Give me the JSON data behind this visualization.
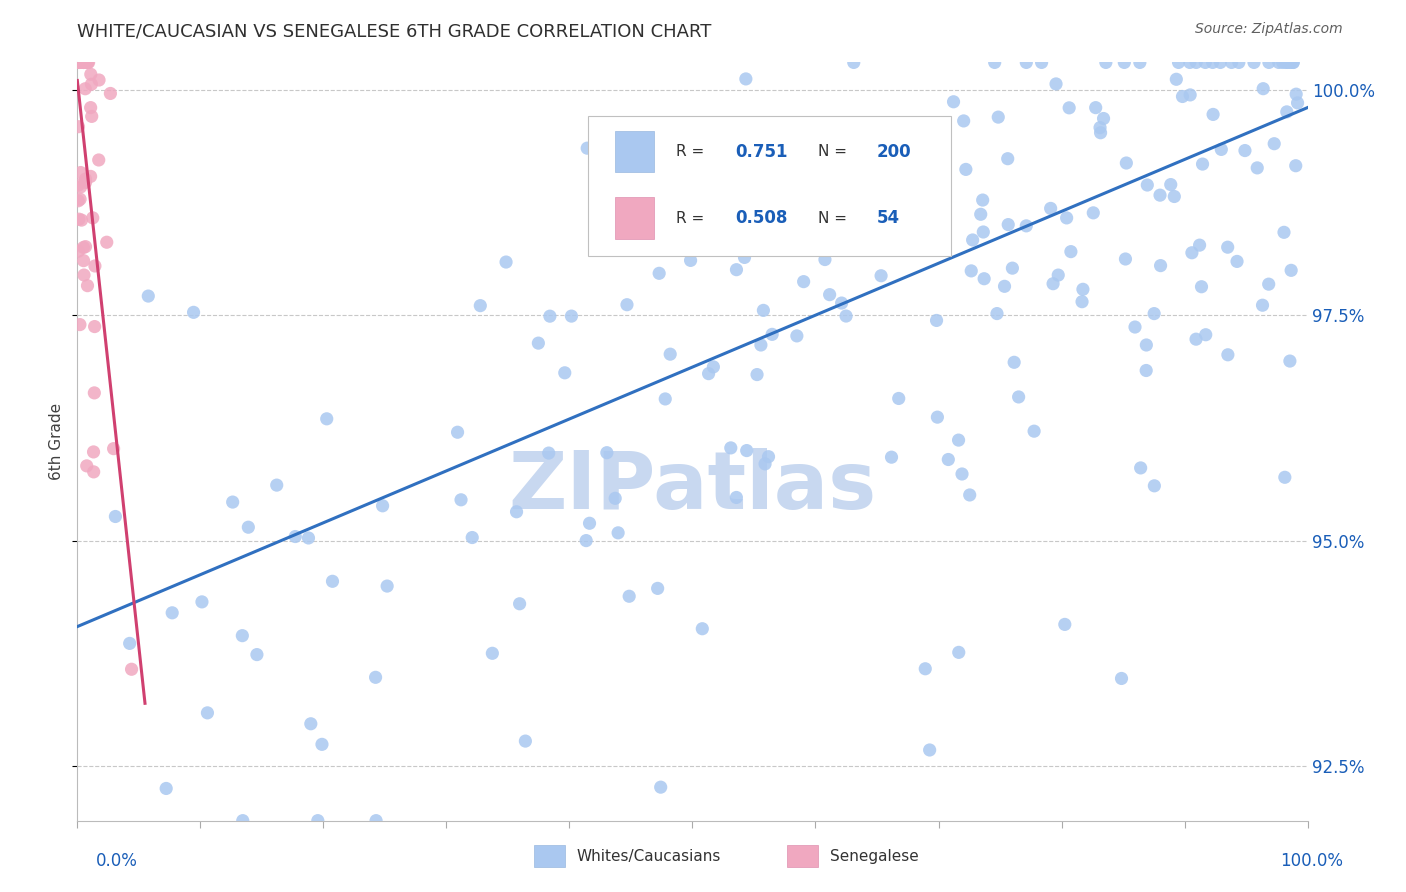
{
  "title": "WHITE/CAUCASIAN VS SENEGALESE 6TH GRADE CORRELATION CHART",
  "source": "Source: ZipAtlas.com",
  "legend_label1": "Whites/Caucasians",
  "legend_label2": "Senegalese",
  "R1": "0.751",
  "N1": "200",
  "R2": "0.508",
  "N2": "54",
  "blue_color": "#aac8f0",
  "pink_color": "#f0a8c0",
  "blue_line_color": "#3070c0",
  "pink_line_color": "#d04070",
  "title_color": "#303030",
  "source_color": "#606060",
  "axis_label_color": "#1a5eb8",
  "ylabel_color": "#404040",
  "watermark_color": "#c8d8f0",
  "grid_color": "#c8c8c8",
  "background_color": "#ffffff",
  "xlim": [
    0.0,
    1.0
  ],
  "ylim": [
    0.919,
    1.003
  ],
  "blue_line_x0": 0.0,
  "blue_line_y0": 0.9405,
  "blue_line_x1": 1.0,
  "blue_line_y1": 0.998,
  "pink_line_x0": 0.0,
  "pink_line_y0": 1.001,
  "pink_line_x1": 0.055,
  "pink_line_y1": 0.932,
  "yticks": [
    0.925,
    0.95,
    0.975,
    1.0
  ],
  "ytick_labels": [
    "92.5%",
    "95.0%",
    "97.5%",
    "100.0%"
  ]
}
